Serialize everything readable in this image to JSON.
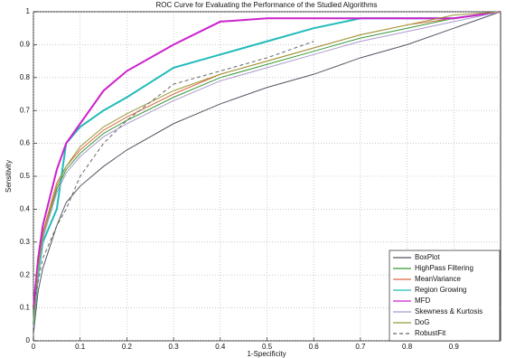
{
  "chart_data": {
    "type": "line",
    "title": "ROC Curve for Evaluating the Performance of the Studied Algorithms",
    "x_label": "1-Specificity",
    "y_label": "Sensitivity",
    "x": [
      0,
      0.01,
      0.02,
      0.05,
      0.07,
      0.1,
      0.15,
      0.2,
      0.3,
      0.4,
      0.5,
      0.6,
      0.7,
      0.8,
      0.9,
      1
    ],
    "series": [
      {
        "name": "BoxPlot",
        "color": "#555566",
        "values": [
          0.02,
          0.15,
          0.22,
          0.35,
          0.42,
          0.47,
          0.53,
          0.58,
          0.66,
          0.72,
          0.77,
          0.81,
          0.86,
          0.9,
          0.95,
          1
        ]
      },
      {
        "name": "HighPass Filtering",
        "color": "#339933",
        "values": [
          0.05,
          0.22,
          0.32,
          0.46,
          0.52,
          0.57,
          0.63,
          0.67,
          0.74,
          0.8,
          0.84,
          0.88,
          0.92,
          0.95,
          0.98,
          1
        ]
      },
      {
        "name": "MeanVariance",
        "color": "#dd6644",
        "values": [
          0.06,
          0.23,
          0.33,
          0.48,
          0.53,
          0.58,
          0.64,
          0.68,
          0.75,
          0.81,
          0.85,
          0.89,
          0.93,
          0.96,
          0.98,
          1
        ]
      },
      {
        "name": "Region Growing",
        "color": "#22bbbb",
        "values": [
          0.05,
          0.2,
          0.3,
          0.4,
          0.6,
          0.65,
          0.7,
          0.74,
          0.83,
          0.87,
          0.91,
          0.95,
          0.98,
          0.98,
          0.98,
          1
        ]
      },
      {
        "name": "MFD",
        "color": "#cc22cc",
        "values": [
          0.1,
          0.25,
          0.35,
          0.52,
          0.6,
          0.66,
          0.76,
          0.82,
          0.9,
          0.97,
          0.98,
          0.98,
          0.98,
          0.98,
          0.98,
          1
        ]
      },
      {
        "name": "Skewness & Kurtosis",
        "color": "#aa99cc",
        "values": [
          0.04,
          0.21,
          0.31,
          0.45,
          0.51,
          0.56,
          0.62,
          0.66,
          0.73,
          0.79,
          0.83,
          0.87,
          0.91,
          0.94,
          0.97,
          1
        ]
      },
      {
        "name": "DoG",
        "color": "#999933",
        "values": [
          0.05,
          0.22,
          0.32,
          0.47,
          0.53,
          0.59,
          0.65,
          0.69,
          0.76,
          0.81,
          0.85,
          0.89,
          0.93,
          0.96,
          0.99,
          1
        ]
      },
      {
        "name": "RobustFit",
        "color": "#666666",
        "dashed": true,
        "values": [
          0.1,
          0.18,
          0.25,
          0.35,
          0.4,
          0.5,
          0.6,
          0.67,
          0.78,
          0.82,
          0.86,
          0.91,
          null,
          null,
          null,
          null
        ]
      }
    ],
    "xlim": [
      0,
      1
    ],
    "xticks": [
      0,
      0.1,
      0.2,
      0.3,
      0.4,
      0.5,
      0.6,
      0.7,
      0.8,
      0.9
    ],
    "ylim": [
      0,
      1
    ],
    "yticks": [
      0,
      0.1,
      0.2,
      0.3,
      0.4,
      0.5,
      0.6,
      0.7,
      0.8,
      0.9,
      1
    ],
    "grid": true,
    "legend": "lower right"
  }
}
